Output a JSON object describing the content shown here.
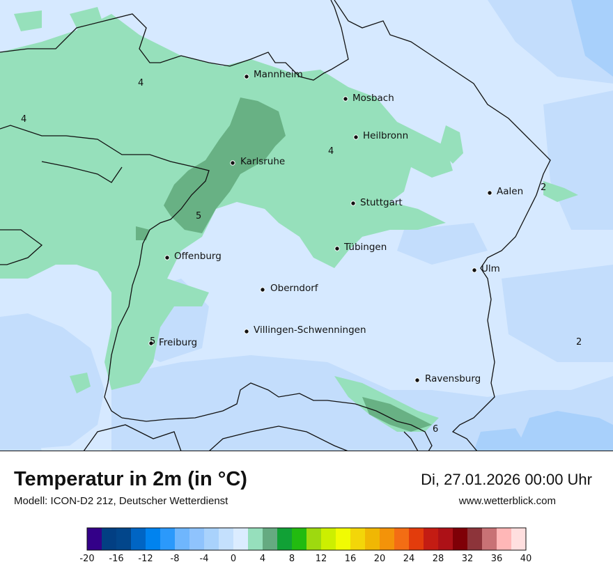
{
  "map": {
    "cities": [
      {
        "name": "Mannheim"
      },
      {
        "name": "Mosbach"
      },
      {
        "name": "Heilbronn"
      },
      {
        "name": "Karlsruhe"
      },
      {
        "name": "Aalen"
      },
      {
        "name": "Stuttgart"
      },
      {
        "name": "Tübingen"
      },
      {
        "name": "Offenburg"
      },
      {
        "name": "Ulm"
      },
      {
        "name": "Oberndorf"
      },
      {
        "name": "Villingen-Schwenningen"
      },
      {
        "name": "Freiburg"
      },
      {
        "name": "Ravensburg"
      }
    ],
    "isolines": [
      {
        "value": "4"
      },
      {
        "value": "4"
      },
      {
        "value": "4"
      },
      {
        "value": "5"
      },
      {
        "value": "2"
      },
      {
        "value": "2"
      },
      {
        "value": "5"
      },
      {
        "value": "6"
      }
    ],
    "colors": {
      "temp_0_2": "#d6e9ff",
      "temp_neg2_0": "#c3ddfc",
      "temp_neg4_neg2": "#a8d0fb",
      "temp_2_4": "#96e0bb",
      "temp_4_6": "#68b184",
      "border": "#111111"
    }
  },
  "footer": {
    "title": "Temperatur in 2m (in °C)",
    "subtitle": "Modell: ICON-D2 21z, Deutscher Wetterdienst",
    "datetime": "Di, 27.01.2026 00:00 Uhr",
    "website": "www.wetterblick.com"
  },
  "legend": {
    "ticks": [
      "-20",
      "-16",
      "-12",
      "-8",
      "-4",
      "0",
      "4",
      "8",
      "12",
      "16",
      "20",
      "24",
      "28",
      "32",
      "36",
      "40"
    ],
    "colors": [
      "#330088",
      "#023f83",
      "#02468b",
      "#0065c4",
      "#0083ef",
      "#2b99fb",
      "#6fb6fd",
      "#8fc3fd",
      "#a9d2fc",
      "#c4e0fd",
      "#dbecff",
      "#96dfbc",
      "#65aa81",
      "#11a136",
      "#22bb10",
      "#9ed90f",
      "#ccef01",
      "#f1fb03",
      "#f3d609",
      "#f0b704",
      "#f39309",
      "#f36d14",
      "#e33c0c",
      "#c41c13",
      "#ad1117",
      "#7f0007",
      "#8d343a",
      "#c87275",
      "#ffb7b7",
      "#ffdfdf"
    ]
  }
}
